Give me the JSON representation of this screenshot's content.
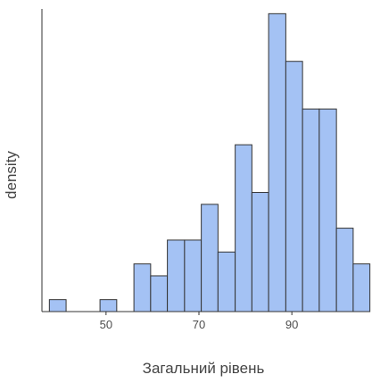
{
  "chart_data": {
    "type": "bar",
    "variant": "histogram",
    "xlabel": "Загальний рівень",
    "ylabel": "density",
    "xlim": [
      36.2,
      106.1
    ],
    "ylim": [
      0,
      25.4
    ],
    "x_ticks": [
      50,
      70,
      90
    ],
    "bin_width": 3.63,
    "bins": [
      {
        "x0": 37.8,
        "x1": 41.4,
        "value": 1
      },
      {
        "x0": 41.4,
        "x1": 45.1,
        "value": 0
      },
      {
        "x0": 45.1,
        "x1": 48.7,
        "value": 0
      },
      {
        "x0": 48.7,
        "x1": 52.3,
        "value": 1
      },
      {
        "x0": 52.3,
        "x1": 56.0,
        "value": 0
      },
      {
        "x0": 56.0,
        "x1": 59.6,
        "value": 4
      },
      {
        "x0": 59.6,
        "x1": 63.2,
        "value": 3
      },
      {
        "x0": 63.2,
        "x1": 66.9,
        "value": 6
      },
      {
        "x0": 66.9,
        "x1": 70.5,
        "value": 6
      },
      {
        "x0": 70.5,
        "x1": 74.1,
        "value": 9
      },
      {
        "x0": 74.1,
        "x1": 77.8,
        "value": 5
      },
      {
        "x0": 77.8,
        "x1": 81.4,
        "value": 14
      },
      {
        "x0": 81.4,
        "x1": 85.0,
        "value": 10
      },
      {
        "x0": 85.0,
        "x1": 88.7,
        "value": 25
      },
      {
        "x0": 88.7,
        "x1": 92.3,
        "value": 21
      },
      {
        "x0": 92.3,
        "x1": 95.9,
        "value": 17
      },
      {
        "x0": 95.9,
        "x1": 99.6,
        "value": 17
      },
      {
        "x0": 99.6,
        "x1": 103.2,
        "value": 7
      },
      {
        "x0": 103.2,
        "x1": 106.8,
        "value": 4
      }
    ],
    "bar_fill": "#a4c2f4",
    "bar_stroke": "#333333",
    "axis_color": "#333333",
    "grid": false,
    "legend": "none"
  }
}
